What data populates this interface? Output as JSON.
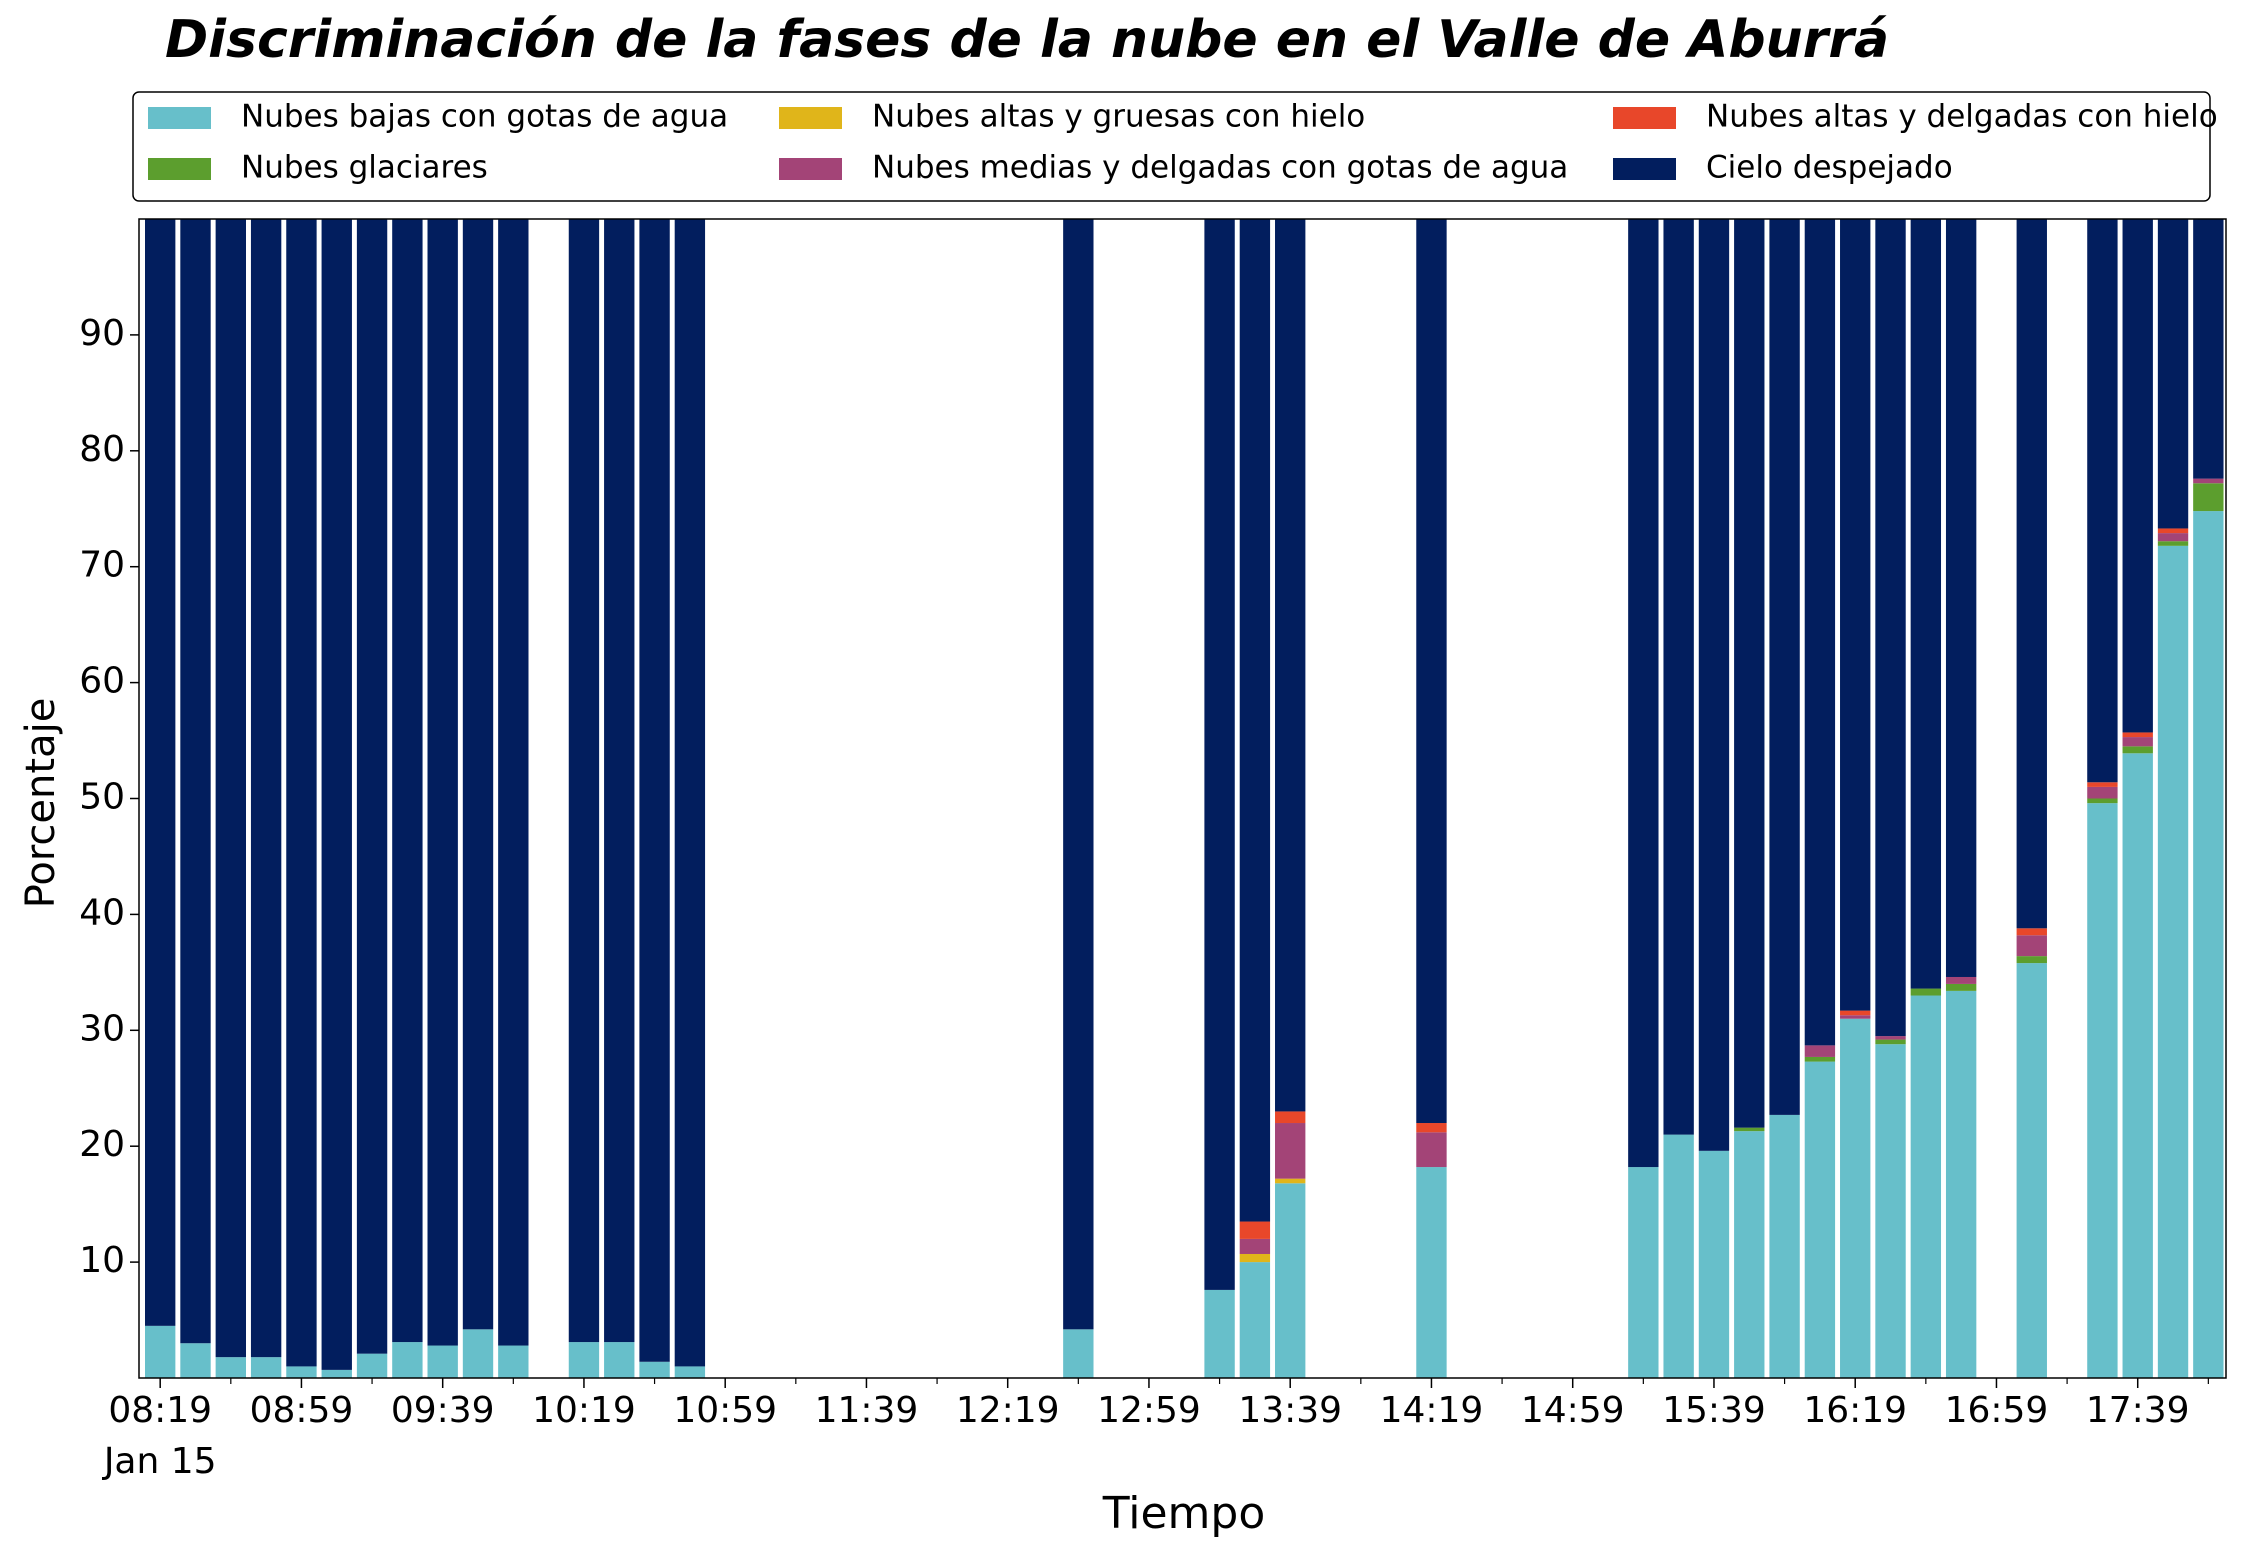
{
  "chart_data": {
    "type": "bar",
    "title": "Discriminación de la fases de la nube en el Valle de Aburrá",
    "x_label": "Tiempo",
    "y_label": "Porcentaje",
    "date_label": "Jan 15",
    "stacked": true,
    "x": [
      "08:19",
      "08:29",
      "08:39",
      "08:49",
      "08:59",
      "09:09",
      "09:19",
      "09:29",
      "09:39",
      "09:49",
      "09:59",
      "10:19",
      "10:29",
      "10:39",
      "10:49",
      "12:39",
      "13:19",
      "13:29",
      "13:39",
      "14:19",
      "15:19",
      "15:29",
      "15:39",
      "15:49",
      "15:59",
      "16:09",
      "16:19",
      "16:29",
      "16:39",
      "16:49",
      "17:09",
      "17:29",
      "17:39",
      "17:49",
      "17:59"
    ],
    "xlim": [
      "08:13",
      "18:04"
    ],
    "xticks": [
      "08:19",
      "08:59",
      "09:39",
      "10:19",
      "10:59",
      "11:39",
      "12:19",
      "12:59",
      "13:39",
      "14:19",
      "14:59",
      "15:39",
      "16:19",
      "16:59",
      "17:39"
    ],
    "x_minor_ticks": [
      "08:39",
      "09:19",
      "09:59",
      "10:39",
      "11:19",
      "11:59",
      "12:39",
      "13:19",
      "13:59",
      "14:39",
      "15:19",
      "15:59",
      "16:39",
      "17:19",
      "17:59"
    ],
    "ylim": [
      0,
      100
    ],
    "yticks": [
      10,
      20,
      30,
      40,
      50,
      60,
      70,
      80,
      90
    ],
    "series": [
      {
        "name": "Nubes bajas con gotas de agua",
        "color": "#67bfca",
        "values": [
          4.5,
          3,
          1.8,
          1.8,
          1.0,
          0.7,
          2.1,
          3.1,
          2.8,
          4.2,
          2.8,
          3.1,
          3.1,
          1.4,
          1.0,
          4.2,
          7.6,
          10,
          16.8,
          18.2,
          18.2,
          21,
          19.6,
          21.3,
          22.7,
          27.3,
          31,
          28.8,
          33,
          33.4,
          35.8,
          49.6,
          53.9,
          71.8,
          74.8
        ]
      },
      {
        "name": "Nubes glaciares",
        "color": "#5c9e2e",
        "values": [
          0,
          0,
          0,
          0,
          0,
          0,
          0,
          0,
          0,
          0,
          0,
          0,
          0,
          0,
          0,
          0,
          0,
          0,
          0,
          0,
          0,
          0,
          0,
          0.3,
          0,
          0.4,
          0,
          0.4,
          0.6,
          0.6,
          0.6,
          0.4,
          0.6,
          0.4,
          2.4
        ]
      },
      {
        "name": "Nubes altas y gruesas con hielo",
        "color": "#e0b51a",
        "values": [
          0,
          0,
          0,
          0,
          0,
          0,
          0,
          0,
          0,
          0,
          0,
          0,
          0,
          0,
          0,
          0,
          0,
          0.7,
          0.4,
          0,
          0,
          0,
          0,
          0,
          0,
          0,
          0,
          0,
          0,
          0,
          0,
          0,
          0,
          0,
          0
        ]
      },
      {
        "name": "Nubes medias y delgadas con gotas de agua",
        "color": "#a34477",
        "values": [
          0,
          0,
          0,
          0,
          0,
          0,
          0,
          0,
          0,
          0,
          0,
          0,
          0,
          0,
          0,
          0,
          0,
          1.3,
          4.8,
          3.0,
          0,
          0,
          0,
          0,
          0,
          1.0,
          0.3,
          0.3,
          0,
          0.6,
          1.8,
          1.0,
          0.8,
          0.7,
          0.4
        ]
      },
      {
        "name": "Nubes altas y delgadas con hielo",
        "color": "#e8472a",
        "values": [
          0,
          0,
          0,
          0,
          0,
          0,
          0,
          0,
          0,
          0,
          0,
          0,
          0,
          0,
          0,
          0,
          0,
          1.5,
          1.0,
          0.8,
          0,
          0,
          0,
          0,
          0,
          0,
          0.4,
          0,
          0,
          0,
          0.6,
          0.4,
          0.4,
          0.4,
          0
        ]
      },
      {
        "name": "Cielo despejado",
        "color": "#021e5e",
        "values": [
          95.5,
          97,
          98.2,
          98.2,
          99,
          99.3,
          97.9,
          96.9,
          97.2,
          95.8,
          97.2,
          96.9,
          96.9,
          98.6,
          99,
          95.8,
          92.4,
          86.5,
          77,
          78,
          81.8,
          79,
          80.4,
          78.4,
          77.3,
          71.3,
          68.3,
          70.5,
          66.4,
          65.4,
          61.2,
          48.6,
          44.3,
          26.7,
          22.4
        ]
      }
    ]
  }
}
